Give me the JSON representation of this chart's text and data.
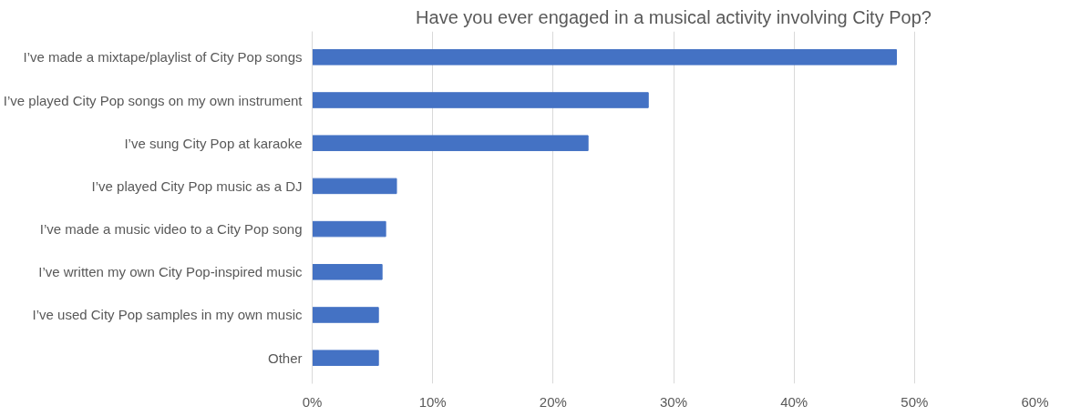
{
  "chart_data": {
    "type": "bar",
    "orientation": "horizontal",
    "title": "Have you ever engaged in a musical activity involving City Pop?",
    "categories": [
      "I’ve made a mixtape/playlist of City Pop songs",
      "I’ve played City Pop songs on my own instrument",
      "I’ve sung City Pop at karaoke",
      "I’ve played City Pop music as a DJ",
      "I’ve made a music video to a City Pop song",
      "I’ve written my own City Pop-inspired music",
      "I’ve used City Pop samples in my own music",
      "Other"
    ],
    "values": [
      48.5,
      27.9,
      22.9,
      7.0,
      6.1,
      5.8,
      5.5,
      5.5
    ],
    "color": "#4472c4",
    "xlim": [
      0,
      60
    ],
    "xticks": [
      {
        "value": 0,
        "label": "0%"
      },
      {
        "value": 10,
        "label": "10%"
      },
      {
        "value": 20,
        "label": "20%"
      },
      {
        "value": 30,
        "label": "30%"
      },
      {
        "value": 40,
        "label": "40%"
      },
      {
        "value": 50,
        "label": "50%"
      },
      {
        "value": 60,
        "label": "60%"
      }
    ],
    "grid": "x"
  }
}
